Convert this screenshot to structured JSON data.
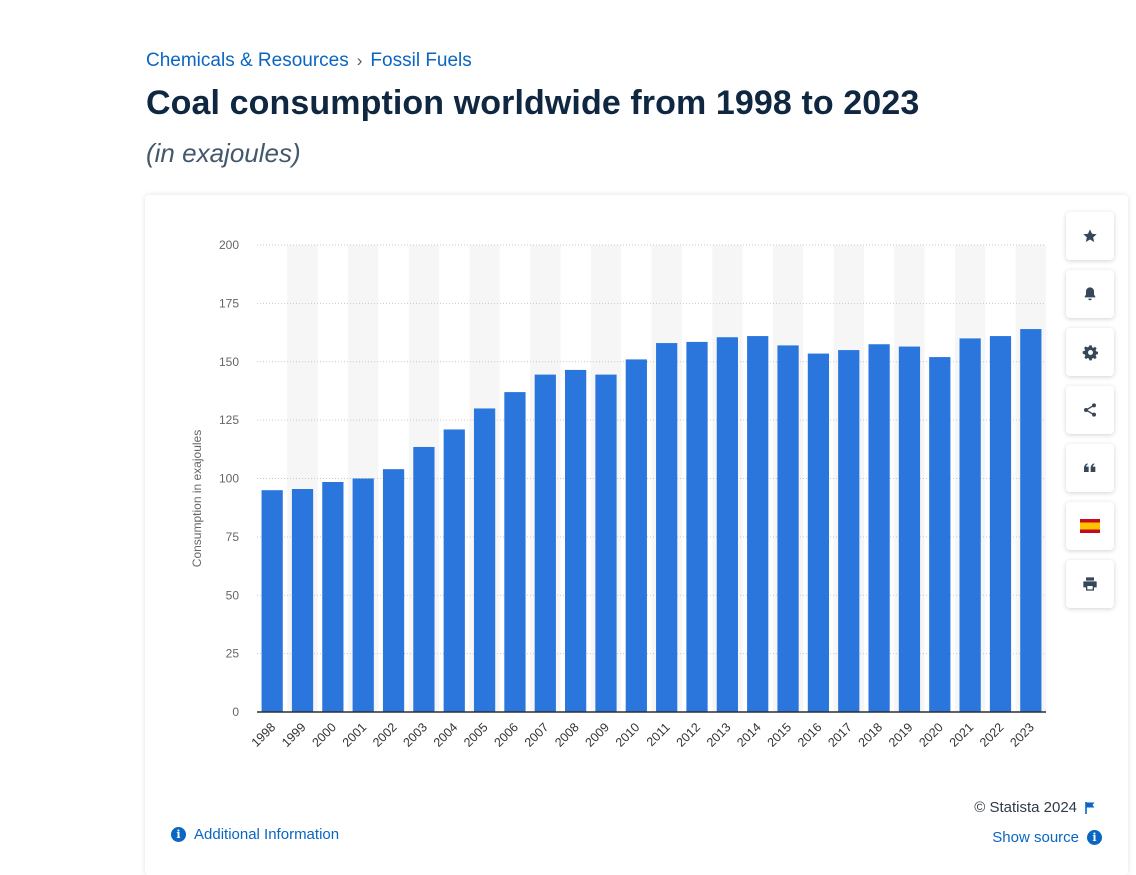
{
  "breadcrumb": {
    "items": [
      "Chemicals & Resources",
      "Fossil Fuels"
    ],
    "separator": "›"
  },
  "title": "Coal consumption worldwide from 1998 to 2023",
  "subtitle": "(in exajoules)",
  "chart_data": {
    "type": "bar",
    "categories": [
      "1998",
      "1999",
      "2000",
      "2001",
      "2002",
      "2003",
      "2004",
      "2005",
      "2006",
      "2007",
      "2008",
      "2009",
      "2010",
      "2011",
      "2012",
      "2013",
      "2014",
      "2015",
      "2016",
      "2017",
      "2018",
      "2019",
      "2020",
      "2021",
      "2022",
      "2023"
    ],
    "values": [
      95.0,
      95.5,
      98.5,
      100.0,
      104.0,
      113.5,
      121.0,
      130.0,
      137.0,
      144.5,
      146.5,
      144.5,
      151.0,
      158.0,
      158.5,
      160.5,
      161.0,
      157.0,
      153.5,
      155.0,
      157.5,
      156.5,
      152.0,
      160.0,
      161.0,
      164.0
    ],
    "ylabel": "Consumption in exajoules",
    "xlabel": "",
    "ylim": [
      0,
      200
    ],
    "yticks": [
      0,
      25,
      50,
      75,
      100,
      125,
      150,
      175,
      200
    ],
    "grid": true,
    "bar_color": "#2a76dd"
  },
  "tools": [
    {
      "name": "favorite-star-icon"
    },
    {
      "name": "notification-bell-icon"
    },
    {
      "name": "settings-gear-icon"
    },
    {
      "name": "share-icon"
    },
    {
      "name": "cite-quote-icon"
    },
    {
      "name": "spain-flag-icon"
    },
    {
      "name": "print-icon"
    }
  ],
  "footer": {
    "copyright": "© Statista 2024",
    "additional_info": "Additional Information",
    "show_source": "Show source"
  },
  "colors": {
    "accent": "#0a66c2",
    "bar": "#2a76dd",
    "title": "#0f2741"
  }
}
